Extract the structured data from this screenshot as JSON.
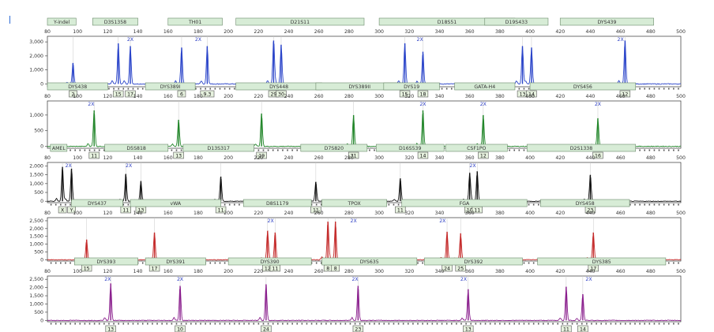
{
  "chart_data": {
    "type": "line",
    "title": "",
    "x_ticks": [
      80,
      100,
      120,
      140,
      160,
      180,
      200,
      220,
      240,
      260,
      280,
      300,
      320,
      340,
      360,
      380,
      400,
      420,
      440,
      460,
      480,
      500
    ],
    "xlim": [
      80,
      500
    ],
    "panels": [
      {
        "id": "blue",
        "color": "#2a44c9",
        "y_ticks": [
          "0",
          "1,000",
          "2,000",
          "3,000"
        ],
        "ylim": [
          -200,
          3400
        ],
        "markers": [
          {
            "label": "Y-indel",
            "from": 80,
            "to": 99
          },
          {
            "label": "D3S1358",
            "from": 110,
            "to": 140
          },
          {
            "label": "TH01",
            "from": 160,
            "to": 196
          },
          {
            "label": "D21S11",
            "from": 205,
            "to": 290
          },
          {
            "label": "D18S51",
            "from": 300,
            "to": 390
          },
          {
            "label": "D19S433",
            "from": 370,
            "to": 412
          },
          {
            "label": "DYS439",
            "from": 420,
            "to": 482
          }
        ],
        "peaks": [
          {
            "x": 97,
            "height": 1500,
            "allele": "2"
          },
          {
            "x": 127,
            "height": 2900,
            "allele": "15"
          },
          {
            "x": 135,
            "height": 2700,
            "allele": "17"
          },
          {
            "x": 169,
            "height": 2600,
            "allele": "6"
          },
          {
            "x": 186,
            "height": 2700,
            "allele": "9.3"
          },
          {
            "x": 230,
            "height": 3100,
            "allele": "29"
          },
          {
            "x": 235,
            "height": 2800,
            "allele": "30"
          },
          {
            "x": 317,
            "height": 2900,
            "allele": "15"
          },
          {
            "x": 329,
            "height": 2300,
            "allele": "18"
          },
          {
            "x": 395,
            "height": 2700,
            "allele": "13"
          },
          {
            "x": 401,
            "height": 2600,
            "allele": "14"
          },
          {
            "x": 463,
            "height": 3100,
            "allele": "12"
          }
        ],
        "annotations": [
          {
            "x": 135,
            "text": "2X"
          },
          {
            "x": 180,
            "text": "2X"
          },
          {
            "x": 327,
            "text": "2X"
          },
          {
            "x": 460,
            "text": "2X"
          }
        ]
      },
      {
        "id": "green",
        "color": "#22862a",
        "y_ticks": [
          "0",
          "500",
          "1,000"
        ],
        "ylim": [
          -60,
          1450
        ],
        "markers": [
          {
            "label": "DYS438",
            "from": 80,
            "to": 120
          },
          {
            "label": "DYS389I",
            "from": 145,
            "to": 178
          },
          {
            "label": "DYS448",
            "from": 205,
            "to": 262
          },
          {
            "label": "DYS389II",
            "from": 258,
            "to": 316
          },
          {
            "label": "DYS19",
            "from": 303,
            "to": 340
          },
          {
            "label": "GATA-H4",
            "from": 350,
            "to": 390
          },
          {
            "label": "DYS456",
            "from": 400,
            "to": 470
          }
        ],
        "peaks": [
          {
            "x": 111,
            "height": 1150,
            "allele": "11"
          },
          {
            "x": 167,
            "height": 850,
            "allele": "13"
          },
          {
            "x": 222,
            "height": 1050,
            "allele": "19"
          },
          {
            "x": 283,
            "height": 1000,
            "allele": "31"
          },
          {
            "x": 329,
            "height": 1150,
            "allele": "14"
          },
          {
            "x": 369,
            "height": 1000,
            "allele": "12"
          },
          {
            "x": 445,
            "height": 900,
            "allele": "16"
          }
        ],
        "annotations": [
          {
            "x": 109,
            "text": "2X"
          },
          {
            "x": 329,
            "text": "2X"
          },
          {
            "x": 369,
            "text": "2X"
          },
          {
            "x": 445,
            "text": "2X"
          }
        ]
      },
      {
        "id": "black",
        "color": "#111111",
        "y_ticks": [
          "0",
          "500",
          "1,000",
          "1,500",
          "2,000"
        ],
        "ylim": [
          -80,
          2200
        ],
        "markers": [
          {
            "label": "AMEL",
            "from": 82,
            "to": 93
          },
          {
            "label": "D5S818",
            "from": 118,
            "to": 160
          },
          {
            "label": "D13S317",
            "from": 170,
            "to": 217
          },
          {
            "label": "D7S820",
            "from": 248,
            "to": 292
          },
          {
            "label": "D16S539",
            "from": 298,
            "to": 343
          },
          {
            "label": "CSF1PO",
            "from": 344,
            "to": 385
          },
          {
            "label": "D2S1338",
            "from": 398,
            "to": 470
          }
        ],
        "peaks": [
          {
            "x": 90,
            "height": 1950,
            "allele": "X"
          },
          {
            "x": 96,
            "height": 1850,
            "allele": "Y"
          },
          {
            "x": 132,
            "height": 1550,
            "allele": "11"
          },
          {
            "x": 142,
            "height": 1150,
            "allele": "13"
          },
          {
            "x": 195,
            "height": 1400,
            "allele": "11"
          },
          {
            "x": 258,
            "height": 1100,
            "allele": "11"
          },
          {
            "x": 314,
            "height": 1300,
            "allele": "11"
          },
          {
            "x": 360,
            "height": 1600,
            "allele": "10"
          },
          {
            "x": 365,
            "height": 1700,
            "allele": "11"
          },
          {
            "x": 440,
            "height": 1500,
            "allele": "23"
          }
        ],
        "annotations": [
          {
            "x": 94,
            "text": "2X"
          },
          {
            "x": 134,
            "text": "2X"
          },
          {
            "x": 362,
            "text": "2X"
          }
        ]
      },
      {
        "id": "red",
        "color": "#c42a2a",
        "y_ticks": [
          "0",
          "500",
          "1,000",
          "1,500",
          "2,000",
          "2,500"
        ],
        "ylim": [
          -80,
          2700
        ],
        "markers": [
          {
            "label": "DYS437",
            "from": 96,
            "to": 130
          },
          {
            "label": "vWA",
            "from": 135,
            "to": 195
          },
          {
            "label": "D8S1179",
            "from": 210,
            "to": 255
          },
          {
            "label": "TPOX",
            "from": 262,
            "to": 305
          },
          {
            "label": "FGA",
            "from": 315,
            "to": 398
          },
          {
            "label": "DYS458",
            "from": 407,
            "to": 466
          }
        ],
        "peaks": [
          {
            "x": 106,
            "height": 1300,
            "allele": "15"
          },
          {
            "x": 151,
            "height": 1750,
            "allele": "17"
          },
          {
            "x": 226,
            "height": 1850,
            "allele": "12"
          },
          {
            "x": 231,
            "height": 1750,
            "allele": "11"
          },
          {
            "x": 266,
            "height": 2450,
            "allele": "8"
          },
          {
            "x": 271,
            "height": 2450,
            "allele": "8"
          },
          {
            "x": 345,
            "height": 1800,
            "allele": "24"
          },
          {
            "x": 354,
            "height": 1700,
            "allele": "25"
          },
          {
            "x": 442,
            "height": 1750,
            "allele": "17"
          }
        ],
        "annotations": [
          {
            "x": 228,
            "text": "2X"
          },
          {
            "x": 283,
            "text": "2X"
          },
          {
            "x": 342,
            "text": "2X"
          }
        ]
      },
      {
        "id": "purple",
        "color": "#8a1f8d",
        "y_ticks": [
          "0",
          "500",
          "1,000",
          "1,500",
          "2,000",
          "2,500"
        ],
        "ylim": [
          -80,
          2700
        ],
        "markers": [
          {
            "label": "DYS393",
            "from": 98,
            "to": 140
          },
          {
            "label": "DYS391",
            "from": 145,
            "to": 185
          },
          {
            "label": "DYS390",
            "from": 200,
            "to": 255
          },
          {
            "label": "DYS635",
            "from": 262,
            "to": 325
          },
          {
            "label": "DYS392",
            "from": 330,
            "to": 395
          },
          {
            "label": "DYS385",
            "from": 405,
            "to": 490
          }
        ],
        "peaks": [
          {
            "x": 122,
            "height": 2250,
            "allele": "13"
          },
          {
            "x": 168,
            "height": 2100,
            "allele": "10"
          },
          {
            "x": 225,
            "height": 2200,
            "allele": "24"
          },
          {
            "x": 286,
            "height": 2100,
            "allele": "23"
          },
          {
            "x": 359,
            "height": 1900,
            "allele": "13"
          },
          {
            "x": 424,
            "height": 2050,
            "allele": "11"
          },
          {
            "x": 435,
            "height": 1600,
            "allele": "14"
          }
        ],
        "annotations": [
          {
            "x": 120,
            "text": "2X"
          },
          {
            "x": 168,
            "text": "2X"
          },
          {
            "x": 284,
            "text": "2X"
          },
          {
            "x": 356,
            "text": "2X"
          },
          {
            "x": 439,
            "text": "2X"
          }
        ]
      }
    ]
  }
}
